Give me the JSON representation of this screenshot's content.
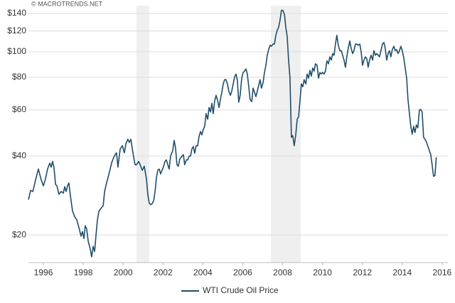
{
  "chart_data": {
    "type": "line",
    "source": "© MACROTRENDS.NET",
    "log_scale": true,
    "grid": true,
    "legend": "bottom",
    "shaded_ranges": [
      [
        2000.67,
        2001.31
      ],
      [
        2007.41,
        2008.91
      ]
    ],
    "shade_color": "#efefef",
    "xlim": [
      1995.25,
      2016.29
    ],
    "xticks": [
      1996,
      1998,
      2000,
      2002,
      2004,
      2006,
      2008,
      2010,
      2012,
      2014,
      2016
    ],
    "ylim": [
      15.7,
      150
    ],
    "yticks": [
      {
        "value": 20,
        "label": "$20"
      },
      {
        "value": 40,
        "label": "$40"
      },
      {
        "value": 60,
        "label": "$60"
      },
      {
        "value": 80,
        "label": "$80"
      },
      {
        "value": 100,
        "label": "$100"
      },
      {
        "value": 120,
        "label": "$120"
      },
      {
        "value": 140,
        "label": "$140"
      }
    ],
    "x": [
      1995.25,
      1995.36,
      1995.47,
      1995.61,
      1995.75,
      1995.89,
      1996.0,
      1996.11,
      1996.21,
      1996.32,
      1996.39,
      1996.46,
      1996.53,
      1996.61,
      1996.68,
      1996.78,
      1996.89,
      1997.0,
      1997.07,
      1997.14,
      1997.21,
      1997.28,
      1997.35,
      1997.46,
      1997.57,
      1997.68,
      1997.78,
      1997.89,
      1997.96,
      1998.03,
      1998.1,
      1998.17,
      1998.25,
      1998.35,
      1998.42,
      1998.5,
      1998.57,
      1998.64,
      1998.71,
      1998.78,
      1998.89,
      1999.0,
      1999.07,
      1999.17,
      1999.24,
      1999.35,
      1999.42,
      1999.53,
      1999.6,
      1999.67,
      1999.74,
      1999.85,
      1999.96,
      2000.06,
      2000.14,
      2000.24,
      2000.31,
      2000.39,
      2000.46,
      2000.53,
      2000.6,
      2000.67,
      2000.78,
      2000.88,
      2000.96,
      2001.06,
      2001.17,
      2001.24,
      2001.31,
      2001.38,
      2001.45,
      2001.53,
      2001.6,
      2001.67,
      2001.74,
      2001.81,
      2001.88,
      2001.95,
      2002.02,
      2002.1,
      2002.17,
      2002.24,
      2002.31,
      2002.38,
      2002.49,
      2002.56,
      2002.63,
      2002.7,
      2002.77,
      2002.84,
      2002.95,
      2003.02,
      2003.09,
      2003.17,
      2003.24,
      2003.31,
      2003.38,
      2003.45,
      2003.52,
      2003.59,
      2003.66,
      2003.74,
      2003.81,
      2003.88,
      2003.95,
      2004.02,
      2004.09,
      2004.16,
      2004.24,
      2004.31,
      2004.38,
      2004.45,
      2004.52,
      2004.59,
      2004.66,
      2004.73,
      2004.81,
      2004.88,
      2004.95,
      2005.02,
      2005.09,
      2005.16,
      2005.23,
      2005.3,
      2005.38,
      2005.45,
      2005.52,
      2005.59,
      2005.66,
      2005.73,
      2005.8,
      2005.87,
      2005.95,
      2006.02,
      2006.09,
      2006.16,
      2006.23,
      2006.3,
      2006.37,
      2006.45,
      2006.52,
      2006.59,
      2006.66,
      2006.73,
      2006.8,
      2006.87,
      2006.94,
      2007.02,
      2007.09,
      2007.16,
      2007.23,
      2007.3,
      2007.37,
      2007.44,
      2007.51,
      2007.59,
      2007.66,
      2007.73,
      2007.8,
      2007.87,
      2007.94,
      2008.01,
      2008.09,
      2008.16,
      2008.23,
      2008.3,
      2008.37,
      2008.44,
      2008.51,
      2008.58,
      2008.66,
      2008.73,
      2008.8,
      2008.87,
      2008.94,
      2009.01,
      2009.08,
      2009.16,
      2009.23,
      2009.3,
      2009.37,
      2009.44,
      2009.51,
      2009.58,
      2009.65,
      2009.73,
      2009.8,
      2009.87,
      2009.94,
      2010.01,
      2010.08,
      2010.15,
      2010.22,
      2010.3,
      2010.37,
      2010.44,
      2010.51,
      2010.58,
      2010.65,
      2010.72,
      2010.79,
      2010.87,
      2010.94,
      2011.01,
      2011.08,
      2011.15,
      2011.22,
      2011.29,
      2011.37,
      2011.44,
      2011.51,
      2011.58,
      2011.65,
      2011.72,
      2011.79,
      2011.87,
      2011.94,
      2012.01,
      2012.08,
      2012.15,
      2012.22,
      2012.29,
      2012.36,
      2012.44,
      2012.51,
      2012.58,
      2012.65,
      2012.72,
      2012.79,
      2012.86,
      2012.93,
      2013.01,
      2013.08,
      2013.15,
      2013.22,
      2013.29,
      2013.36,
      2013.43,
      2013.5,
      2013.58,
      2013.65,
      2013.72,
      2013.79,
      2013.86,
      2013.93,
      2014.0,
      2014.07,
      2014.15,
      2014.22,
      2014.29,
      2014.36,
      2014.43,
      2014.5,
      2014.57,
      2014.64,
      2014.71,
      2014.78,
      2014.86,
      2014.93,
      2015.0,
      2015.07,
      2015.14,
      2015.21,
      2015.28,
      2015.36,
      2015.43,
      2015.5,
      2015.57,
      2015.64,
      2015.71
    ],
    "series": [
      {
        "name": "WTI Crude Oil Price",
        "color": "#1f4e69",
        "values": [
          27.3,
          29.6,
          29.3,
          32.5,
          35.7,
          32.5,
          30.8,
          32.8,
          35.7,
          37.6,
          36.3,
          38.2,
          36.3,
          31.2,
          30.8,
          28.6,
          29.3,
          28.9,
          30.6,
          29.3,
          30.8,
          31.6,
          28.4,
          24.7,
          23.5,
          22.8,
          21.4,
          19.8,
          20.6,
          19.4,
          21.7,
          21.1,
          18.9,
          17.7,
          16.5,
          18.1,
          17.3,
          20.1,
          22.8,
          24.6,
          25.3,
          25.9,
          29.3,
          31.6,
          33.1,
          35.7,
          37.6,
          39.6,
          40.5,
          41.2,
          36.3,
          42.6,
          43.8,
          41.2,
          44.6,
          46.4,
          45.1,
          46.4,
          42.6,
          39.6,
          37.1,
          37.1,
          38.2,
          36.6,
          35.3,
          36.6,
          32.8,
          28.4,
          26.5,
          26.1,
          26.3,
          27.0,
          29.3,
          33.1,
          35.3,
          35.7,
          34.2,
          35.3,
          36.3,
          38.2,
          38.7,
          37.1,
          35.7,
          40.0,
          42.0,
          45.9,
          43.0,
          37.1,
          36.6,
          38.9,
          40.0,
          40.5,
          37.1,
          38.7,
          38.7,
          40.0,
          40.0,
          42.6,
          43.5,
          41.0,
          43.8,
          43.8,
          47.6,
          49.6,
          48.2,
          50.6,
          51.9,
          58.1,
          55.3,
          61.3,
          59.0,
          63.6,
          58.1,
          64.9,
          68.2,
          65.7,
          61.3,
          65.7,
          70.0,
          75.4,
          78.3,
          78.3,
          75.4,
          70.8,
          68.2,
          70.8,
          75.4,
          80.3,
          82.3,
          77.8,
          64.3,
          68.2,
          79.3,
          83.4,
          84.4,
          86.0,
          82.3,
          73.6,
          65.7,
          64.6,
          72.7,
          70.0,
          67.5,
          70.8,
          74.5,
          78.3,
          72.7,
          76.4,
          83.4,
          88.8,
          97.1,
          102,
          106,
          105,
          107,
          107,
          115.6,
          121,
          124,
          132,
          144,
          144,
          139,
          124,
          114,
          93,
          79.3,
          47.2,
          47.9,
          43.8,
          48.2,
          55.3,
          56.5,
          64.9,
          75.4,
          73.6,
          78.3,
          75.4,
          82.3,
          79.3,
          85.0,
          80.8,
          86.7,
          84.4,
          90,
          88.8,
          79.3,
          83.4,
          82.3,
          83.4,
          82.3,
          84.4,
          92.4,
          90,
          95.7,
          93,
          98.5,
          97.1,
          107,
          115.6,
          106,
          101,
          101,
          97.1,
          93,
          87.3,
          95.7,
          103,
          110,
          103,
          98.5,
          101,
          107,
          107,
          106,
          107,
          100,
          88.8,
          93,
          95.7,
          94.2,
          87.3,
          93,
          97.1,
          93,
          101,
          97.1,
          98.5,
          97.1,
          95.7,
          101,
          107,
          108.6,
          103,
          93,
          98.5,
          101,
          95.7,
          102,
          105,
          101,
          102,
          98.5,
          101,
          105,
          101,
          95.7,
          86.7,
          79.3,
          65.7,
          58.1,
          52,
          48.5,
          52,
          49.2,
          52.6,
          51.3,
          60,
          60.3,
          59,
          47.2,
          46.4,
          45.3,
          43.8,
          42,
          40.5,
          37.1,
          33.5,
          33.7,
          39.6
        ]
      }
    ]
  }
}
